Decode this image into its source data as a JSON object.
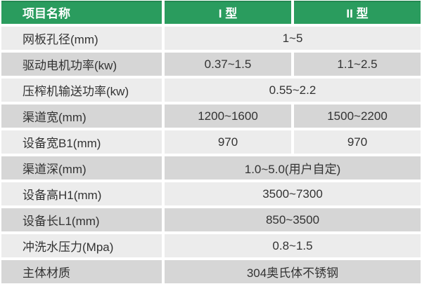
{
  "colors": {
    "header_green": "#2a9c5e",
    "row_light": "#ececec",
    "row_dark": "#d6d6d6",
    "text": "#333333",
    "header_text": "#ffffff"
  },
  "table": {
    "header": {
      "project_name": "项目名称",
      "type1": "I 型",
      "type2": "II 型"
    },
    "rows": [
      {
        "label": "网板孔径(mm)",
        "span": "1~5"
      },
      {
        "label": "驱动电机功率(kw)",
        "v1": "0.37~1.5",
        "v2": "1.1~2.5"
      },
      {
        "label": "压榨机输送功率(kw)",
        "span": "0.55~2.2"
      },
      {
        "label": "渠道宽(mm)",
        "v1": "1200~1600",
        "v2": "1500~2200"
      },
      {
        "label": "设备宽B1(mm)",
        "v1": "970",
        "v2": "970"
      },
      {
        "label": "渠道深(mm)",
        "span": "1.0~5.0(用户自定)"
      },
      {
        "label": "设备高H1(mm)",
        "span": "3500~7300"
      },
      {
        "label": "设备长L1(mm)",
        "span": "850~3500"
      },
      {
        "label": "冲洗水压力(Mpa)",
        "span": "0.8~1.5"
      },
      {
        "label": "主体材质",
        "span": "304奥氏体不锈钢"
      }
    ]
  }
}
